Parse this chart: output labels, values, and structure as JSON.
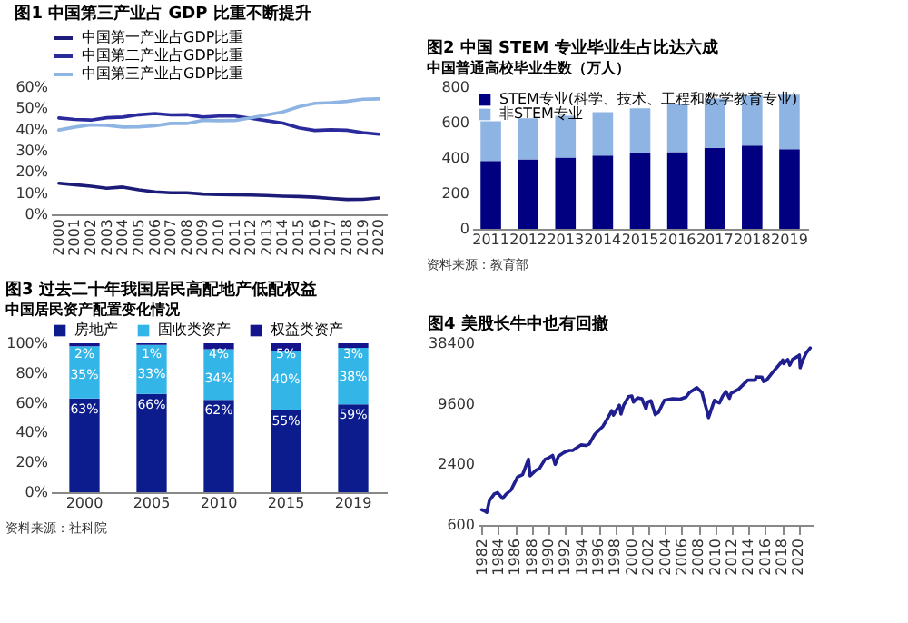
{
  "chart_data": [
    {
      "type": "line",
      "title": "图1  中国第三产业占 GDP 比重不断提升",
      "categories": [
        "2000",
        "2001",
        "2002",
        "2003",
        "2004",
        "2005",
        "2006",
        "2007",
        "2008",
        "2009",
        "2010",
        "2011",
        "2012",
        "2013",
        "2014",
        "2015",
        "2016",
        "2017",
        "2018",
        "2019",
        "2020"
      ],
      "series": [
        {
          "name": "中国第一产业占GDP比重",
          "color": "#1c1c78",
          "values": [
            14.7,
            14.0,
            13.3,
            12.3,
            12.9,
            11.6,
            10.6,
            10.2,
            10.2,
            9.6,
            9.3,
            9.2,
            9.1,
            8.9,
            8.6,
            8.4,
            8.1,
            7.5,
            7.0,
            7.1,
            7.7
          ]
        },
        {
          "name": "中国第二产业占GDP比重",
          "color": "#2a2a9c",
          "values": [
            45.5,
            44.8,
            44.5,
            45.6,
            45.9,
            47.0,
            47.6,
            46.9,
            47.0,
            45.9,
            46.4,
            46.4,
            45.3,
            44.2,
            43.1,
            40.8,
            39.6,
            39.9,
            39.7,
            38.6,
            37.8
          ]
        },
        {
          "name": "中国第三产业占GDP比重",
          "color": "#8db4e2",
          "values": [
            39.8,
            41.2,
            42.2,
            42.0,
            41.2,
            41.3,
            41.8,
            42.9,
            42.9,
            44.4,
            44.2,
            44.3,
            45.5,
            46.9,
            48.3,
            50.8,
            52.4,
            52.7,
            53.3,
            54.3,
            54.5
          ]
        }
      ],
      "ylim": [
        0,
        60
      ],
      "yticks": [
        {
          "value": 0,
          "label": "0%"
        },
        {
          "value": 10,
          "label": "10%"
        },
        {
          "value": 20,
          "label": "20%"
        },
        {
          "value": 30,
          "label": "30%"
        },
        {
          "value": 40,
          "label": "40%"
        },
        {
          "value": 50,
          "label": "50%"
        },
        {
          "value": 60,
          "label": "60%"
        }
      ],
      "legend": "top",
      "grid": false,
      "marker": "none",
      "line_style": "solid"
    },
    {
      "type": "bar",
      "stacked": true,
      "title": "图2  中国 STEM 专业毕业生占比达六成",
      "subtitle": "中国普通高校毕业生数（万人）",
      "categories": [
        "2011",
        "2012",
        "2013",
        "2014",
        "2015",
        "2016",
        "2017",
        "2018",
        "2019"
      ],
      "series": [
        {
          "name": "STEM专业(科学、技术、工程和数学教育专业)",
          "color": "#000080",
          "values": [
            383,
            392,
            402,
            414,
            427,
            433,
            458,
            470,
            450
          ]
        },
        {
          "name": "非STEM专业",
          "color": "#8db4e2",
          "values": [
            225,
            233,
            236,
            245,
            254,
            271,
            278,
            283,
            308
          ]
        }
      ],
      "ylim": [
        0,
        800
      ],
      "yticks": [
        0,
        200,
        400,
        600,
        800
      ],
      "legend": "top left",
      "grid": false,
      "annotations": [
        "资料来源：教育部"
      ]
    },
    {
      "type": "bar",
      "stacked": true,
      "title": "图3  过去二十年我国居民高配地产低配权益",
      "subtitle": "中国居民资产配置变化情况",
      "categories": [
        "2000",
        "2005",
        "2010",
        "2015",
        "2019"
      ],
      "series": [
        {
          "name": "房地产",
          "color": "#0c1c8c",
          "values": [
            63,
            66,
            62,
            55,
            59
          ],
          "value_labels": [
            "63%",
            "66%",
            "62%",
            "55%",
            "59%"
          ]
        },
        {
          "name": "固收类资产",
          "color": "#33b5e8",
          "values": [
            35,
            33,
            34,
            40,
            38
          ],
          "value_labels": [
            "35%",
            "33%",
            "34%",
            "40%",
            "38%"
          ]
        },
        {
          "name": "权益类资产",
          "color": "#14148c",
          "values": [
            2,
            1,
            4,
            5,
            3
          ],
          "value_labels": [
            "2%",
            "1%",
            "4%",
            "5%",
            "3%"
          ]
        }
      ],
      "ylim": [
        0,
        100
      ],
      "yticks": [
        {
          "value": 0,
          "label": "0%"
        },
        {
          "value": 20,
          "label": "20%"
        },
        {
          "value": 40,
          "label": "40%"
        },
        {
          "value": 60,
          "label": "60%"
        },
        {
          "value": 80,
          "label": "80%"
        },
        {
          "value": 100,
          "label": "100%"
        }
      ],
      "legend": "top",
      "grid": false,
      "annotations": [
        "资料来源：社科院"
      ]
    },
    {
      "type": "line",
      "title": "图4  美股长牛中也有回撤",
      "log": "y",
      "legend": false,
      "grid": false,
      "marker": "none",
      "series": [
        {
          "color": "#1f1f8f",
          "x": [
            1982.0,
            1982.4,
            1982.6,
            1982.9,
            1983.5,
            1983.9,
            1984.5,
            1984.9,
            1985.5,
            1985.9,
            1986.3,
            1986.9,
            1987.6,
            1987.8,
            1988.5,
            1988.9,
            1989.6,
            1989.9,
            1990.5,
            1990.8,
            1991.2,
            1991.9,
            1992.5,
            1992.9,
            1993.9,
            1994.5,
            1994.9,
            1995.5,
            1995.9,
            1996.5,
            1996.9,
            1997.6,
            1997.8,
            1998.5,
            1998.7,
            1999.0,
            1999.6,
            2000.0,
            2000.2,
            2000.7,
            2001.2,
            2001.7,
            2001.9,
            2002.3,
            2002.8,
            2003.2,
            2003.9,
            2004.9,
            2005.8,
            2006.5,
            2006.9,
            2007.8,
            2008.4,
            2008.9,
            2009.2,
            2009.9,
            2010.5,
            2010.9,
            2011.3,
            2011.7,
            2011.9,
            2012.8,
            2013.9,
            2014.8,
            2014.9,
            2015.6,
            2015.8,
            2016.1,
            2016.9,
            2017.9,
            2018.1,
            2018.2,
            2018.7,
            2018.95,
            2019.3,
            2019.9,
            2020.1,
            2020.2,
            2020.5,
            2020.9,
            2021.4
          ],
          "values": [
            850,
            820,
            800,
            1040,
            1220,
            1260,
            1100,
            1210,
            1330,
            1550,
            1800,
            1900,
            2700,
            1850,
            2100,
            2170,
            2700,
            2750,
            2950,
            2400,
            2900,
            3170,
            3300,
            3300,
            3750,
            3700,
            3830,
            4700,
            5100,
            5700,
            6450,
            8200,
            7400,
            9300,
            7600,
            9200,
            11300,
            11500,
            10000,
            11000,
            10800,
            8600,
            10000,
            10300,
            7500,
            7900,
            10400,
            10800,
            10700,
            11200,
            12400,
            13900,
            12500,
            8800,
            7000,
            10400,
            9800,
            11500,
            12700,
            10900,
            12200,
            13400,
            16500,
            16500,
            17800,
            17700,
            16000,
            16300,
            19800,
            24700,
            26200,
            24100,
            26500,
            23300,
            26600,
            28500,
            29300,
            21900,
            26000,
            30600,
            34500
          ]
        }
      ],
      "xlim": [
        1981.5,
        2021.8
      ],
      "xticks": [
        1982,
        1984,
        1986,
        1988,
        1990,
        1992,
        1994,
        1996,
        1998,
        2000,
        2002,
        2004,
        2006,
        2008,
        2010,
        2012,
        2014,
        2016,
        2018,
        2020
      ],
      "ylim": [
        600,
        38400
      ],
      "yticks": [
        600,
        2400,
        9600,
        38400
      ]
    }
  ]
}
